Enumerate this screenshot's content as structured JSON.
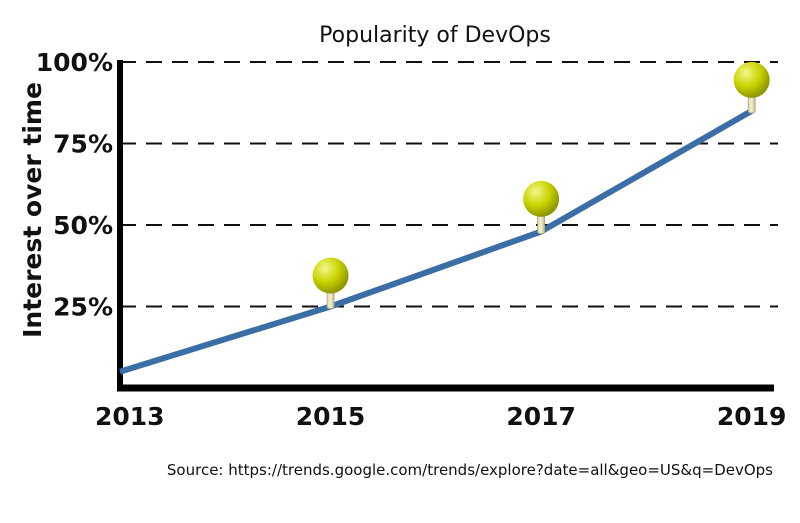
{
  "chart_data": {
    "type": "line",
    "title": "Popularity of DevOps",
    "xlabel": "",
    "ylabel": "Interest over time",
    "x_ticks": [
      "2013",
      "2015",
      "2017",
      "2019"
    ],
    "y_ticks": [
      "25%",
      "50%",
      "75%",
      "100%"
    ],
    "y_tick_values": [
      25,
      50,
      75,
      100
    ],
    "xlim": [
      2013,
      2019.25
    ],
    "ylim": [
      0,
      100
    ],
    "grid": "horizontal-dashed",
    "series": [
      {
        "x": [
          2013,
          2015,
          2017,
          2019
        ],
        "y": [
          5,
          25,
          48,
          85
        ],
        "color": "#3a6ea5"
      }
    ],
    "markers": [
      {
        "x": 2015,
        "y": 34.5
      },
      {
        "x": 2017,
        "y": 58
      },
      {
        "x": 2019,
        "y": 94.5
      }
    ],
    "marker_color": "#c9d400",
    "source": "Source: https://trends.google.com/trends/explore?date=all&geo=US&q=DevOps"
  }
}
